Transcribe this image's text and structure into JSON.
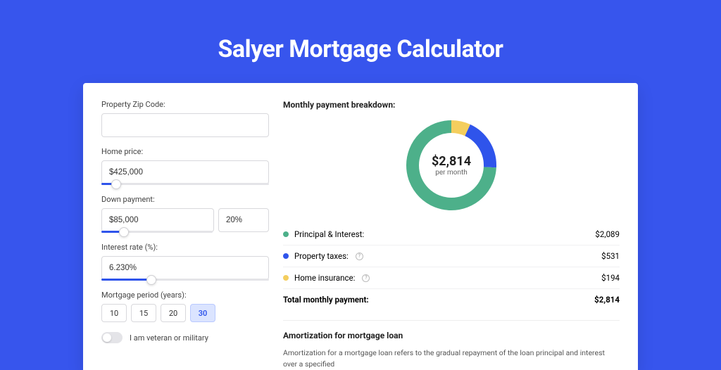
{
  "page": {
    "title": "Salyer Mortgage Calculator",
    "background_color": "#3755ed",
    "card_background": "#ffffff"
  },
  "form": {
    "zip": {
      "label": "Property Zip Code:",
      "value": ""
    },
    "home_price": {
      "label": "Home price:",
      "value": "$425,000",
      "slider_pct": 9
    },
    "down_payment": {
      "label": "Down payment:",
      "amount": "$85,000",
      "pct": "20%",
      "slider_pct": 20
    },
    "interest_rate": {
      "label": "Interest rate (%):",
      "value": "6.230%",
      "slider_pct": 30
    },
    "period": {
      "label": "Mortgage period (years):",
      "options": [
        "10",
        "15",
        "20",
        "30"
      ],
      "selected": "30"
    },
    "veteran": {
      "label": "I am veteran or military",
      "checked": false
    }
  },
  "breakdown": {
    "title": "Monthly payment breakdown:",
    "center_amount": "$2,814",
    "center_sub": "per month",
    "donut": {
      "type": "donut",
      "radius": 55,
      "stroke_width": 18,
      "background_color": "#ffffff",
      "slices": [
        {
          "label": "Principal & Interest:",
          "value_label": "$2,089",
          "pct": 74.2,
          "color": "#4db08a"
        },
        {
          "label": "Property taxes:",
          "value_label": "$531",
          "pct": 18.9,
          "color": "#2f54eb",
          "has_info": true
        },
        {
          "label": "Home insurance:",
          "value_label": "$194",
          "pct": 6.9,
          "color": "#f4ce5e",
          "has_info": true
        }
      ]
    },
    "total": {
      "label": "Total monthly payment:",
      "value": "$2,814"
    }
  },
  "amortization": {
    "title": "Amortization for mortgage loan",
    "text": "Amortization for a mortgage loan refers to the gradual repayment of the loan principal and interest over a specified"
  }
}
